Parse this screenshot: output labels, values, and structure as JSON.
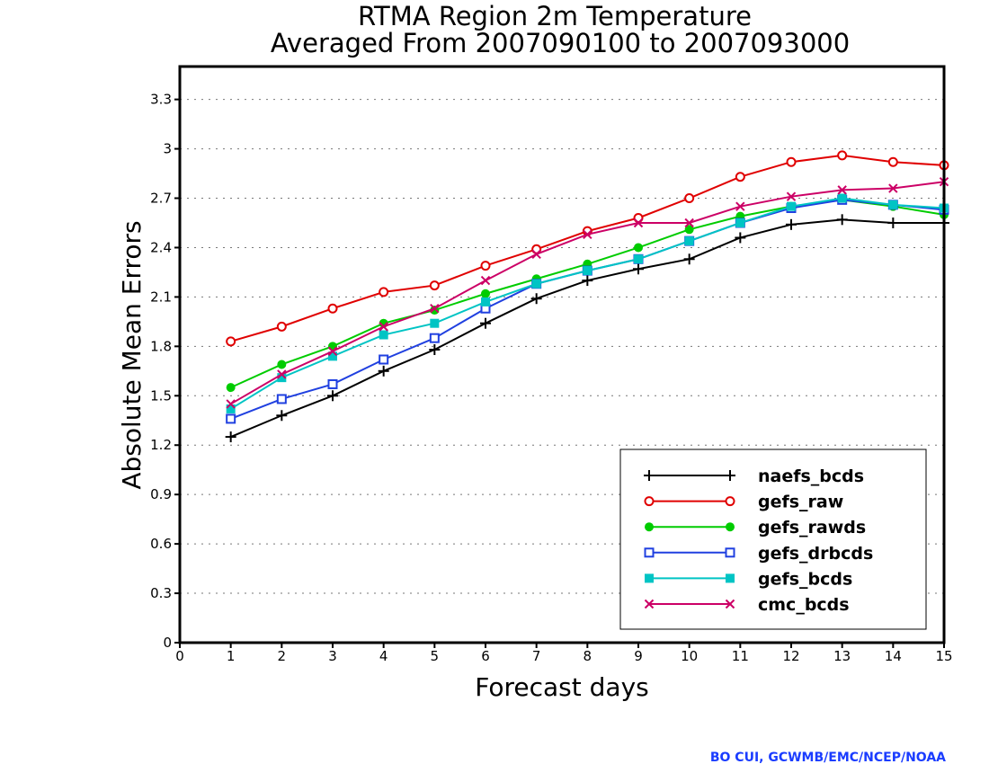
{
  "chart_data": {
    "type": "line",
    "title": "RTMA Region 2m Temperature",
    "subtitle": "Averaged From 2007090100 to 2007093000",
    "xlabel": "Forecast days",
    "ylabel": "Absolute Mean Errors",
    "xlim": [
      0,
      15
    ],
    "ylim": [
      0,
      3.5
    ],
    "xticks": [
      0,
      1,
      2,
      3,
      4,
      5,
      6,
      7,
      8,
      9,
      10,
      11,
      12,
      13,
      14,
      15
    ],
    "yticks": [
      0,
      0.3,
      0.6,
      0.9,
      1.2,
      1.5,
      1.8,
      2.1,
      2.4,
      2.7,
      3,
      3.3
    ],
    "grid": "horizontal dotted",
    "legend_position": "bottom-right",
    "x": [
      1,
      2,
      3,
      4,
      5,
      6,
      7,
      8,
      9,
      10,
      11,
      12,
      13,
      14,
      15
    ],
    "series": [
      {
        "name": "naefs_bcds",
        "color": "#000000",
        "marker": "plus",
        "values": [
          1.25,
          1.38,
          1.5,
          1.65,
          1.78,
          1.94,
          2.09,
          2.2,
          2.27,
          2.33,
          2.46,
          2.54,
          2.57,
          2.55,
          2.55
        ]
      },
      {
        "name": "gefs_raw",
        "color": "#e00000",
        "marker": "open-circle",
        "values": [
          1.83,
          1.92,
          2.03,
          2.13,
          2.17,
          2.29,
          2.39,
          2.5,
          2.58,
          2.7,
          2.83,
          2.92,
          2.96,
          2.92,
          2.9
        ]
      },
      {
        "name": "gefs_rawds",
        "color": "#00cc00",
        "marker": "filled-circle",
        "values": [
          1.55,
          1.69,
          1.8,
          1.94,
          2.02,
          2.12,
          2.21,
          2.3,
          2.4,
          2.51,
          2.59,
          2.65,
          2.69,
          2.65,
          2.6
        ]
      },
      {
        "name": "gefs_drbcds",
        "color": "#2040e0",
        "marker": "open-square",
        "values": [
          1.36,
          1.48,
          1.57,
          1.72,
          1.85,
          2.03,
          2.18,
          2.26,
          2.33,
          2.44,
          2.55,
          2.64,
          2.69,
          2.66,
          2.63
        ]
      },
      {
        "name": "gefs_bcds",
        "color": "#00c4c4",
        "marker": "filled-square",
        "values": [
          1.42,
          1.61,
          1.74,
          1.87,
          1.94,
          2.07,
          2.18,
          2.26,
          2.33,
          2.44,
          2.55,
          2.65,
          2.7,
          2.66,
          2.64
        ]
      },
      {
        "name": "cmc_bcds",
        "color": "#cc0066",
        "marker": "x",
        "values": [
          1.45,
          1.63,
          1.77,
          1.92,
          2.03,
          2.2,
          2.36,
          2.48,
          2.55,
          2.55,
          2.65,
          2.71,
          2.75,
          2.76,
          2.8
        ]
      }
    ]
  },
  "credit": "BO CUI, GCWMB/EMC/NCEP/NOAA"
}
